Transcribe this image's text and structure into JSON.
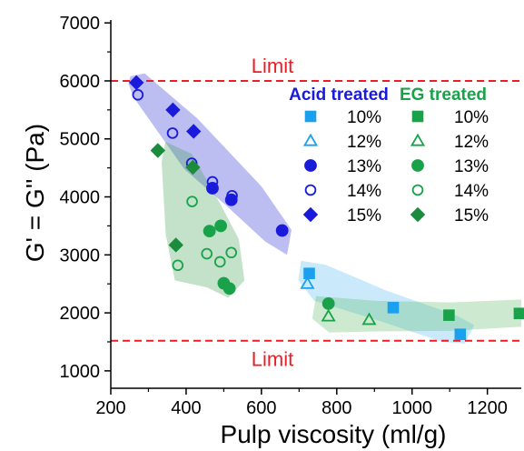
{
  "chart_data": {
    "type": "scatter",
    "xlabel": "Pulp viscosity (ml/g)",
    "ylabel": "G' = G'' (Pa)",
    "xlim": [
      200,
      1290
    ],
    "ylim": [
      700,
      7050
    ],
    "x_ticks": [
      200,
      400,
      600,
      800,
      1000,
      1200
    ],
    "y_ticks": [
      1000,
      2000,
      3000,
      4000,
      5000,
      6000,
      7000
    ],
    "grid": false,
    "reference_lines": [
      {
        "label": "Limit",
        "y": 6000,
        "color": "#ee1c25",
        "style": "dashed"
      },
      {
        "label": "Limit",
        "y": 1520,
        "color": "#ee1c25",
        "style": "dashed"
      }
    ],
    "legend_groups": [
      {
        "title": "Acid treated",
        "color": "#1a1adb"
      },
      {
        "title": "EG treated",
        "color": "#1aa24a"
      }
    ],
    "series": [
      {
        "group": "Acid treated",
        "name": "10%",
        "marker": "square",
        "fill": true,
        "color": "#1aa0ef",
        "points": [
          [
            727,
            2680
          ],
          [
            950,
            2090
          ],
          [
            1128,
            1630
          ]
        ]
      },
      {
        "group": "Acid treated",
        "name": "12%",
        "marker": "triangle",
        "fill": false,
        "color": "#1aa0ef",
        "points": [
          [
            722,
            2500
          ]
        ]
      },
      {
        "group": "Acid treated",
        "name": "13%",
        "marker": "circle",
        "fill": true,
        "color": "#1a1adb",
        "points": [
          [
            470,
            4150
          ],
          [
            520,
            3950
          ],
          [
            655,
            3420
          ]
        ]
      },
      {
        "group": "Acid treated",
        "name": "14%",
        "marker": "circle",
        "fill": false,
        "color": "#1a1adb",
        "points": [
          [
            272,
            5760
          ],
          [
            364,
            5100
          ],
          [
            415,
            4580
          ],
          [
            470,
            4260
          ],
          [
            522,
            4020
          ]
        ]
      },
      {
        "group": "Acid treated",
        "name": "15%",
        "marker": "diamond",
        "fill": true,
        "color": "#1a1adb",
        "points": [
          [
            268,
            5970
          ],
          [
            365,
            5500
          ],
          [
            420,
            5130
          ]
        ]
      },
      {
        "group": "EG treated",
        "name": "10%",
        "marker": "square",
        "fill": true,
        "color": "#1aa24a",
        "points": [
          [
            1098,
            1960
          ],
          [
            1285,
            1990
          ]
        ]
      },
      {
        "group": "EG treated",
        "name": "12%",
        "marker": "triangle",
        "fill": false,
        "color": "#1aa24a",
        "points": [
          [
            778,
            1940
          ],
          [
            886,
            1880
          ]
        ]
      },
      {
        "group": "EG treated",
        "name": "13%",
        "marker": "circle",
        "fill": true,
        "color": "#1aa24a",
        "points": [
          [
            462,
            3410
          ],
          [
            492,
            3500
          ],
          [
            500,
            2510
          ],
          [
            515,
            2420
          ],
          [
            778,
            2160
          ]
        ]
      },
      {
        "group": "EG treated",
        "name": "14%",
        "marker": "circle",
        "fill": false,
        "color": "#1aa24a",
        "points": [
          [
            378,
            2820
          ],
          [
            416,
            3920
          ],
          [
            455,
            3020
          ],
          [
            490,
            2880
          ],
          [
            520,
            3040
          ]
        ]
      },
      {
        "group": "EG treated",
        "name": "15%",
        "marker": "diamond",
        "fill": true,
        "color": "#1a8c3c",
        "points": [
          [
            325,
            4800
          ],
          [
            373,
            3170
          ],
          [
            418,
            4510
          ]
        ]
      }
    ],
    "highlight_regions": [
      {
        "group": "Acid treated",
        "color": "#2f35d8",
        "opacity": 0.32,
        "polygon": [
          [
            252,
            6080
          ],
          [
            290,
            6130
          ],
          [
            430,
            5350
          ],
          [
            600,
            4180
          ],
          [
            680,
            3430
          ],
          [
            668,
            3000
          ],
          [
            610,
            3230
          ],
          [
            505,
            3860
          ],
          [
            395,
            4480
          ],
          [
            260,
            5720
          ],
          [
            247,
            5950
          ]
        ]
      },
      {
        "group": "EG treated",
        "color": "#3a9e4e",
        "opacity": 0.3,
        "polygon": [
          [
            345,
            4950
          ],
          [
            415,
            4740
          ],
          [
            495,
            3830
          ],
          [
            540,
            3270
          ],
          [
            555,
            2560
          ],
          [
            512,
            2260
          ],
          [
            455,
            2440
          ],
          [
            370,
            2560
          ],
          [
            346,
            3350
          ],
          [
            335,
            4600
          ]
        ]
      },
      {
        "group": "Acid treated",
        "color": "#42b5ef",
        "opacity": 0.28,
        "polygon": [
          [
            705,
            2900
          ],
          [
            770,
            2830
          ],
          [
            930,
            2390
          ],
          [
            1120,
            1950
          ],
          [
            1165,
            1790
          ],
          [
            1140,
            1470
          ],
          [
            1080,
            1500
          ],
          [
            905,
            1880
          ],
          [
            740,
            2210
          ],
          [
            698,
            2560
          ]
        ]
      },
      {
        "group": "EG treated",
        "color": "#4bb55a",
        "opacity": 0.28,
        "polygon": [
          [
            745,
            2290
          ],
          [
            900,
            2210
          ],
          [
            1100,
            2180
          ],
          [
            1290,
            2230
          ],
          [
            1290,
            1760
          ],
          [
            1100,
            1690
          ],
          [
            900,
            1680
          ],
          [
            780,
            1660
          ],
          [
            735,
            1900
          ]
        ]
      }
    ]
  }
}
